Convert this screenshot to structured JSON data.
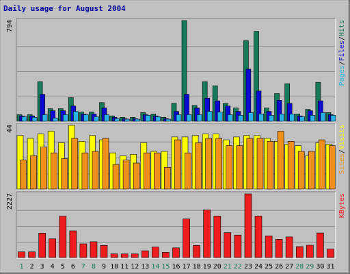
{
  "chart_data": {
    "type": "bar",
    "title": "Daily usage for August 2004",
    "categories": [
      "1",
      "2",
      "3",
      "4",
      "5",
      "6",
      "7",
      "8",
      "9",
      "10",
      "11",
      "12",
      "13",
      "14",
      "15",
      "16",
      "17",
      "18",
      "19",
      "20",
      "21",
      "22",
      "23",
      "24",
      "25",
      "26",
      "27",
      "28",
      "29",
      "30",
      "31"
    ],
    "weekend_days": [
      "1",
      "7",
      "8",
      "14",
      "15",
      "21",
      "22",
      "28",
      "29"
    ],
    "panels": [
      {
        "id": "top",
        "max_label": "794",
        "ylim": [
          0,
          794
        ],
        "series": [
          {
            "name": "Hits",
            "color": "#157b5b",
            "values": [
              52,
              52,
              312,
              99,
              99,
              186,
              73,
              73,
              147,
              42,
              31,
              31,
              68,
              57,
              31,
              141,
              794,
              125,
              312,
              280,
              141,
              104,
              635,
              710,
              104,
              218,
              296,
              57,
              94,
              307,
              68
            ]
          },
          {
            "name": "Files",
            "color": "#0a0ad4",
            "values": [
              42,
              42,
              213,
              83,
              83,
              120,
              57,
              57,
              104,
              31,
              21,
              21,
              52,
              42,
              21,
              78,
              213,
              104,
              182,
              161,
              120,
              78,
              411,
              239,
              78,
              166,
              141,
              42,
              83,
              161,
              52
            ]
          },
          {
            "name": "Pages",
            "color": "#28b4e8",
            "values": [
              36,
              31,
              52,
              26,
              52,
              78,
              52,
              36,
              52,
              21,
              16,
              16,
              47,
              36,
              16,
              52,
              52,
              52,
              78,
              73,
              52,
              47,
              68,
              57,
              47,
              57,
              57,
              36,
              47,
              68,
              47
            ]
          }
        ],
        "legend_text": [
          "Pages",
          "/",
          "Files",
          "/",
          "Hits"
        ],
        "legend_colors": [
          "#28b4e8",
          "#000000",
          "#0a0ad4",
          "#000000",
          "#157b5b"
        ]
      },
      {
        "id": "middle",
        "max_label": "44",
        "ylim": [
          0,
          44
        ],
        "series": [
          {
            "name": "Visits",
            "color": "#ffff00",
            "values": [
              37,
              35,
              38,
              40,
              32,
              44,
              33,
              37,
              34,
              25,
              23,
              24,
              32,
              26,
              26,
              36,
              36,
              37,
              38,
              38,
              34,
              36,
              37,
              37,
              35,
              33,
              31,
              30,
              23,
              32,
              31
            ]
          },
          {
            "name": "Sites",
            "color": "#f0901c",
            "values": [
              20,
              23,
              29,
              25,
              21,
              35,
              25,
              26,
              35,
              17,
              20,
              18,
              25,
              25,
              15,
              34,
              25,
              32,
              35,
              35,
              30,
              30,
              35,
              35,
              33,
              40,
              33,
              26,
              26,
              34,
              30
            ]
          }
        ],
        "legend_text": [
          "Sites",
          "/",
          "Visits"
        ],
        "legend_colors": [
          "#f0901c",
          "#000000",
          "#ffff00"
        ]
      },
      {
        "id": "bottom",
        "max_label": "2227",
        "ylim": [
          0,
          2227
        ],
        "series": [
          {
            "name": "KBytes",
            "color": "#ee1c1c",
            "values": [
              199,
              199,
              854,
              655,
              1447,
              934,
              480,
              554,
              423,
              130,
              130,
              130,
              238,
              368,
              183,
              341,
              1350,
              423,
              1670,
              1450,
              874,
              785,
              2227,
              1450,
              760,
              640,
              720,
              382,
              430,
              860,
              296
            ]
          }
        ],
        "legend_text": [
          "KBytes"
        ],
        "legend_colors": [
          "#ee1c1c"
        ]
      }
    ]
  }
}
